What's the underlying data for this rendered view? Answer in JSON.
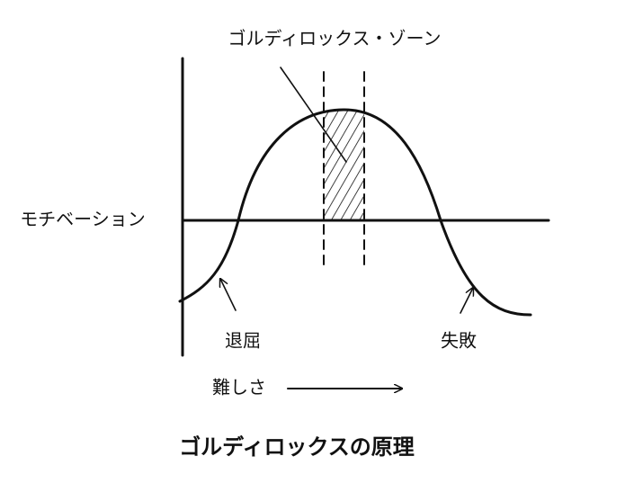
{
  "zone_label": "ゴルディロックス・ゾーン",
  "y_axis_label": "モチベーション",
  "boredom_label": "退屈",
  "failure_label": "失敗",
  "x_axis_label": "難しさ",
  "caption": "ゴルディロックスの原理"
}
